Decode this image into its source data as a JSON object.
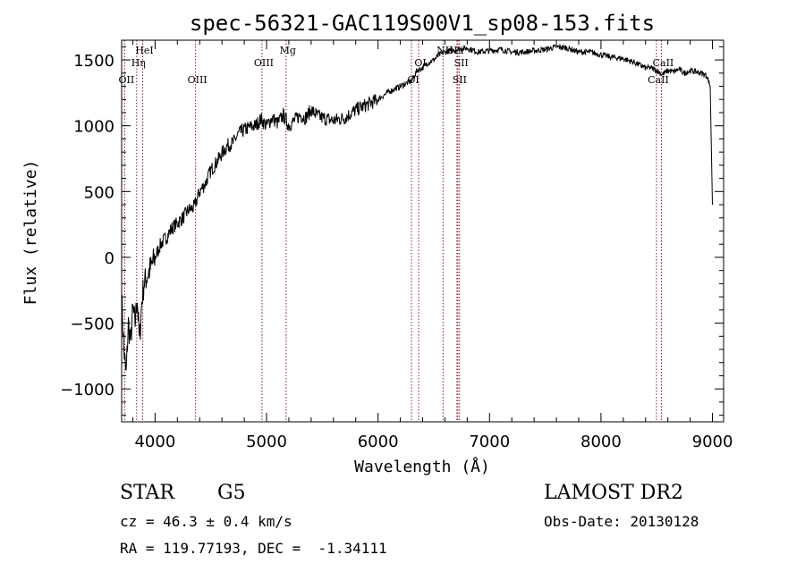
{
  "chart_data": {
    "type": "line",
    "title": "spec-56321-GAC119S00V1_sp08-153.fits",
    "xlabel": "Wavelength (Å)",
    "ylabel": "Flux (relative)",
    "xlim": [
      3700,
      9100
    ],
    "ylim": [
      -1250,
      1650
    ],
    "xticks": [
      4000,
      5000,
      6000,
      7000,
      8000,
      9000
    ],
    "yticks": [
      -1000,
      -500,
      0,
      500,
      1000,
      1500
    ],
    "grid": false,
    "legend": "none",
    "line_color": "#000000",
    "marker_color": "#8b1a1a",
    "series": [
      {
        "x": [
          3700,
          3720,
          3740,
          3760,
          3780,
          3800,
          3820,
          3840,
          3860,
          3880,
          3900,
          3950,
          4000,
          4050,
          4100,
          4150,
          4200,
          4250,
          4300,
          4350,
          4400,
          4450,
          4500,
          4550,
          4600,
          4650,
          4700,
          4750,
          4800,
          4850,
          4900,
          4950,
          5000,
          5050,
          5100,
          5150,
          5200,
          5250,
          5300,
          5350,
          5400,
          5450,
          5500,
          5600,
          5700,
          5800,
          5900,
          6000,
          6100,
          6200,
          6300,
          6350,
          6400,
          6450,
          6500,
          6550,
          6600,
          6700,
          6800,
          6900,
          7000,
          7100,
          7200,
          7300,
          7400,
          7500,
          7600,
          7700,
          7800,
          7900,
          8000,
          8100,
          8200,
          8300,
          8350,
          8400,
          8450,
          8500,
          8550,
          8600,
          8650,
          8700,
          8750,
          8800,
          8850,
          8900,
          8950,
          8980,
          9000
        ],
        "y": [
          -300,
          -700,
          -900,
          -500,
          -650,
          -400,
          -500,
          -300,
          -650,
          -350,
          -200,
          -100,
          0,
          100,
          150,
          220,
          260,
          300,
          360,
          380,
          500,
          560,
          660,
          720,
          790,
          850,
          870,
          940,
          970,
          990,
          1000,
          1050,
          1000,
          1060,
          1020,
          1080,
          1000,
          1040,
          1080,
          1060,
          1120,
          1080,
          1060,
          1040,
          1060,
          1120,
          1160,
          1200,
          1260,
          1300,
          1340,
          1420,
          1440,
          1480,
          1500,
          1540,
          1560,
          1580,
          1590,
          1560,
          1570,
          1580,
          1560,
          1560,
          1570,
          1580,
          1600,
          1590,
          1560,
          1560,
          1540,
          1520,
          1510,
          1480,
          1460,
          1440,
          1440,
          1420,
          1390,
          1420,
          1410,
          1430,
          1400,
          1420,
          1410,
          1400,
          1380,
          1300,
          400
        ]
      }
    ],
    "line_markers": [
      {
        "label": "OII",
        "x": 3727
      },
      {
        "label": "Hη",
        "x": 3835
      },
      {
        "label": "HeI",
        "x": 3889
      },
      {
        "label": "OIII",
        "x": 4363
      },
      {
        "label": "OIII",
        "x": 4959
      },
      {
        "label": "Mg",
        "x": 5175
      },
      {
        "label": "OI",
        "x": 6300
      },
      {
        "label": "OI",
        "x": 6364
      },
      {
        "label": "NII",
        "x": 6583
      },
      {
        "label": "SII",
        "x": 6716
      },
      {
        "label": "SII",
        "x": 6731
      },
      {
        "label": "Li",
        "x": 6708
      },
      {
        "label": "CaII",
        "x": 8498
      },
      {
        "label": "CaII",
        "x": 8542
      }
    ]
  },
  "info": {
    "class": "STAR",
    "subclass": "G5",
    "survey": "LAMOST DR2",
    "cz": "cz = 46.3 ± 0.4 km/s",
    "obs_date": "Obs-Date: 20130128",
    "radec": "RA = 119.77193, DEC =  -1.34111"
  }
}
